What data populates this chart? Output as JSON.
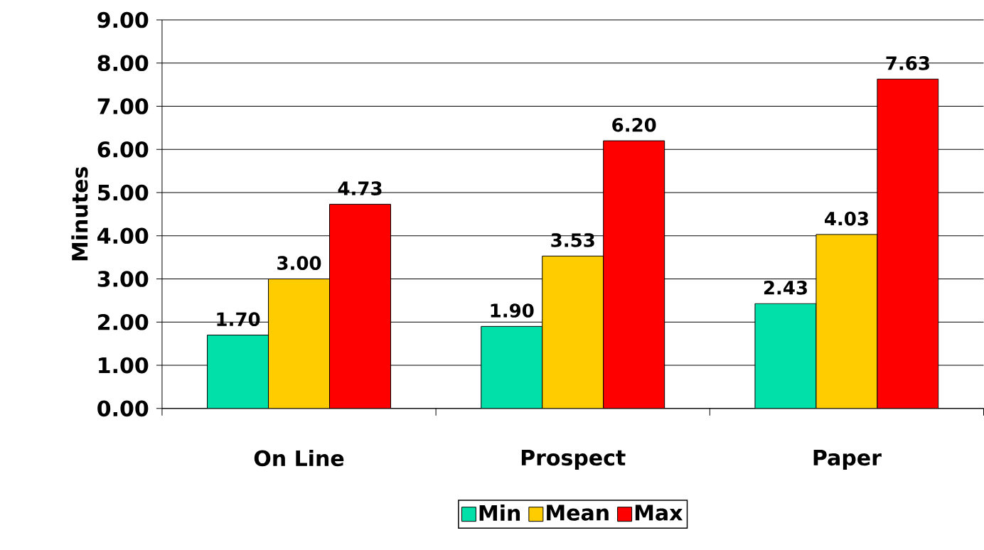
{
  "chart_data": {
    "type": "bar",
    "ylabel": "Minutes",
    "categories": [
      "On Line",
      "Prospect",
      "Paper"
    ],
    "series": [
      {
        "name": "Min",
        "color": "#00e0a8",
        "values": [
          1.7,
          1.9,
          2.43
        ],
        "value_labels": [
          "1.70",
          "1.90",
          "2.43"
        ]
      },
      {
        "name": "Mean",
        "color": "#ffcc00",
        "values": [
          3.0,
          3.53,
          4.03
        ],
        "value_labels": [
          "3.00",
          "3.53",
          "4.03"
        ]
      },
      {
        "name": "Max",
        "color": "#ff0000",
        "values": [
          4.73,
          6.2,
          7.63
        ],
        "value_labels": [
          "4.73",
          "6.20",
          "7.63"
        ]
      }
    ],
    "ylim": [
      0,
      9
    ],
    "yticks": [
      {
        "value": 0,
        "label": "0.00"
      },
      {
        "value": 1,
        "label": "1.00"
      },
      {
        "value": 2,
        "label": "2.00"
      },
      {
        "value": 3,
        "label": "3.00"
      },
      {
        "value": 4,
        "label": "4.00"
      },
      {
        "value": 5,
        "label": "5.00"
      },
      {
        "value": 6,
        "label": "6.00"
      },
      {
        "value": 7,
        "label": "7.00"
      },
      {
        "value": 8,
        "label": "8.00"
      },
      {
        "value": 9,
        "label": "9.00"
      }
    ],
    "grid": "y",
    "legend": "bottom"
  }
}
